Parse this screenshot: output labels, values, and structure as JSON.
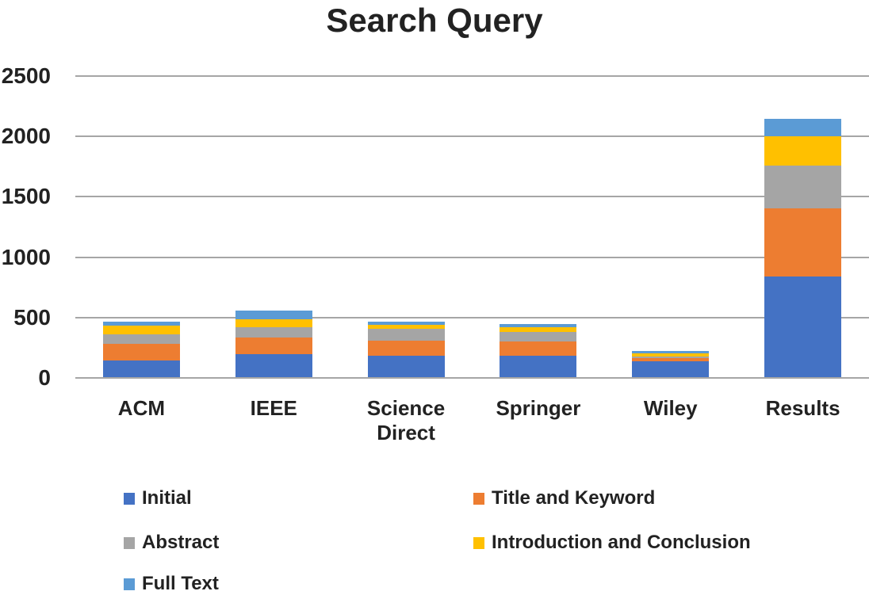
{
  "title": "Search Query",
  "colors": {
    "initial": "#4472C4",
    "title_and_keyword": "#ED7D31",
    "abstract": "#A5A5A5",
    "introduction_and_conclusion": "#FFC000",
    "full_text": "#5B9BD5",
    "gridline": "#A6A6A6",
    "text": "#222222"
  },
  "chart_data": {
    "type": "bar",
    "stacked": true,
    "title": "Search Query",
    "categories": [
      "ACM",
      "IEEE",
      "Science Direct",
      "Springer",
      "Wiley",
      "Results"
    ],
    "series": [
      {
        "name": "Initial",
        "color": "#4472C4",
        "values": [
          140,
          190,
          175,
          175,
          130,
          835
        ]
      },
      {
        "name": "Title and Keyword",
        "color": "#ED7D31",
        "values": [
          135,
          140,
          125,
          120,
          26,
          560
        ]
      },
      {
        "name": "Abstract",
        "color": "#A5A5A5",
        "values": [
          80,
          85,
          100,
          80,
          18,
          360
        ]
      },
      {
        "name": "Introduction and Conclusion",
        "color": "#FFC000",
        "values": [
          75,
          65,
          35,
          40,
          22,
          240
        ]
      },
      {
        "name": "Full Text",
        "color": "#5B9BD5",
        "values": [
          30,
          70,
          25,
          25,
          18,
          145
        ]
      }
    ],
    "xlabel": "",
    "ylabel": "",
    "ylim": [
      0,
      2500
    ],
    "yticks": [
      0,
      500,
      1000,
      1500,
      2000,
      2500
    ],
    "grid": true,
    "legend_position": "bottom"
  }
}
